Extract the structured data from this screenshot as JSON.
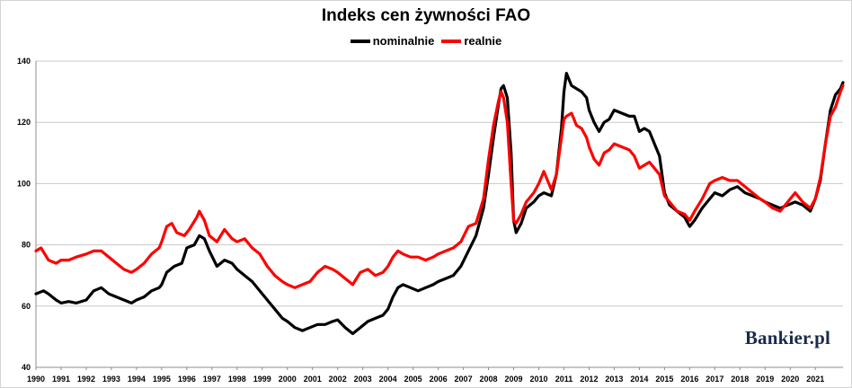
{
  "chart_data": {
    "type": "line",
    "title": "Indeks cen żywności FAO",
    "xlabel": "",
    "ylabel": "",
    "ylim": [
      40,
      140
    ],
    "xlim": [
      1990,
      2022.1
    ],
    "yticks": [
      40,
      60,
      80,
      100,
      120,
      140
    ],
    "xtick_labels": [
      "1990",
      "1991",
      "1992",
      "1993",
      "1994",
      "1995",
      "1996",
      "1997",
      "1998",
      "1999",
      "2000",
      "2001",
      "2002",
      "2003",
      "2004",
      "2005",
      "2006",
      "2007",
      "2008",
      "2009",
      "2010",
      "2011",
      "2012",
      "2013",
      "2014",
      "2015",
      "2016",
      "2017",
      "2018",
      "2019",
      "2020",
      "2021"
    ],
    "grid": "horizontal",
    "legend_position": "top-center",
    "series": [
      {
        "name": "nominalnie",
        "color": "#000000",
        "points": [
          [
            1990,
            64
          ],
          [
            1990.3,
            65
          ],
          [
            1990.5,
            64
          ],
          [
            1990.8,
            62
          ],
          [
            1991,
            61
          ],
          [
            1991.3,
            61.5
          ],
          [
            1991.6,
            61
          ],
          [
            1992,
            62
          ],
          [
            1992.3,
            65
          ],
          [
            1992.6,
            66
          ],
          [
            1992.9,
            64
          ],
          [
            1993.2,
            63
          ],
          [
            1993.5,
            62
          ],
          [
            1993.8,
            61
          ],
          [
            1994,
            62
          ],
          [
            1994.3,
            63
          ],
          [
            1994.6,
            65
          ],
          [
            1994.9,
            66
          ],
          [
            1995,
            67
          ],
          [
            1995.2,
            71
          ],
          [
            1995.5,
            73
          ],
          [
            1995.8,
            74
          ],
          [
            1996,
            79
          ],
          [
            1996.3,
            80
          ],
          [
            1996.5,
            83
          ],
          [
            1996.7,
            82
          ],
          [
            1996.9,
            78
          ],
          [
            1997.2,
            73
          ],
          [
            1997.5,
            75
          ],
          [
            1997.8,
            74
          ],
          [
            1998,
            72
          ],
          [
            1998.3,
            70
          ],
          [
            1998.6,
            68
          ],
          [
            1998.9,
            65
          ],
          [
            1999.2,
            62
          ],
          [
            1999.5,
            59
          ],
          [
            1999.8,
            56
          ],
          [
            2000,
            55
          ],
          [
            2000.3,
            53
          ],
          [
            2000.6,
            52
          ],
          [
            2000.9,
            53
          ],
          [
            2001.2,
            54
          ],
          [
            2001.5,
            54
          ],
          [
            2001.8,
            55
          ],
          [
            2002,
            55.5
          ],
          [
            2002.3,
            53
          ],
          [
            2002.6,
            51
          ],
          [
            2002.9,
            53
          ],
          [
            2003.2,
            55
          ],
          [
            2003.5,
            56
          ],
          [
            2003.8,
            57
          ],
          [
            2004,
            59
          ],
          [
            2004.2,
            63
          ],
          [
            2004.4,
            66
          ],
          [
            2004.6,
            67
          ],
          [
            2004.9,
            66
          ],
          [
            2005.2,
            65
          ],
          [
            2005.5,
            66
          ],
          [
            2005.8,
            67
          ],
          [
            2006,
            68
          ],
          [
            2006.3,
            69
          ],
          [
            2006.6,
            70
          ],
          [
            2006.9,
            73
          ],
          [
            2007.2,
            78
          ],
          [
            2007.5,
            83
          ],
          [
            2007.8,
            92
          ],
          [
            2008,
            103
          ],
          [
            2008.2,
            115
          ],
          [
            2008.4,
            126
          ],
          [
            2008.5,
            131
          ],
          [
            2008.6,
            132
          ],
          [
            2008.75,
            128
          ],
          [
            2008.9,
            110
          ],
          [
            2009,
            88
          ],
          [
            2009.1,
            84
          ],
          [
            2009.3,
            87
          ],
          [
            2009.5,
            92
          ],
          [
            2009.8,
            94
          ],
          [
            2010,
            96
          ],
          [
            2010.2,
            97
          ],
          [
            2010.5,
            96
          ],
          [
            2010.7,
            103
          ],
          [
            2010.9,
            118
          ],
          [
            2011,
            130
          ],
          [
            2011.1,
            136
          ],
          [
            2011.3,
            132
          ],
          [
            2011.5,
            131
          ],
          [
            2011.7,
            130
          ],
          [
            2011.9,
            128
          ],
          [
            2012,
            124
          ],
          [
            2012.2,
            120
          ],
          [
            2012.4,
            117
          ],
          [
            2012.6,
            120
          ],
          [
            2012.8,
            121
          ],
          [
            2013,
            124
          ],
          [
            2013.3,
            123
          ],
          [
            2013.6,
            122
          ],
          [
            2013.8,
            122
          ],
          [
            2014,
            117
          ],
          [
            2014.2,
            118
          ],
          [
            2014.4,
            117
          ],
          [
            2014.6,
            113
          ],
          [
            2014.8,
            109
          ],
          [
            2015,
            97
          ],
          [
            2015.2,
            93
          ],
          [
            2015.5,
            91
          ],
          [
            2015.8,
            89
          ],
          [
            2016,
            86
          ],
          [
            2016.2,
            88
          ],
          [
            2016.5,
            92
          ],
          [
            2016.8,
            95
          ],
          [
            2017,
            97
          ],
          [
            2017.3,
            96
          ],
          [
            2017.6,
            98
          ],
          [
            2017.9,
            99
          ],
          [
            2018.2,
            97
          ],
          [
            2018.5,
            96
          ],
          [
            2018.8,
            95
          ],
          [
            2019,
            94
          ],
          [
            2019.3,
            93
          ],
          [
            2019.6,
            92
          ],
          [
            2019.9,
            93
          ],
          [
            2020.2,
            94
          ],
          [
            2020.5,
            93
          ],
          [
            2020.8,
            91
          ],
          [
            2021,
            95
          ],
          [
            2021.2,
            101
          ],
          [
            2021.4,
            113
          ],
          [
            2021.6,
            124
          ],
          [
            2021.8,
            129
          ],
          [
            2022,
            131
          ],
          [
            2022.1,
            133
          ]
        ]
      },
      {
        "name": "realnie",
        "color": "#ff0000",
        "points": [
          [
            1990,
            78
          ],
          [
            1990.2,
            79
          ],
          [
            1990.5,
            75
          ],
          [
            1990.8,
            74
          ],
          [
            1991,
            75
          ],
          [
            1991.3,
            75
          ],
          [
            1991.6,
            76
          ],
          [
            1992,
            77
          ],
          [
            1992.3,
            78
          ],
          [
            1992.6,
            78
          ],
          [
            1992.9,
            76
          ],
          [
            1993.2,
            74
          ],
          [
            1993.5,
            72
          ],
          [
            1993.8,
            71
          ],
          [
            1994,
            72
          ],
          [
            1994.3,
            74
          ],
          [
            1994.6,
            77
          ],
          [
            1994.9,
            79
          ],
          [
            1995,
            81
          ],
          [
            1995.2,
            86
          ],
          [
            1995.4,
            87
          ],
          [
            1995.6,
            84
          ],
          [
            1995.9,
            83
          ],
          [
            1996.1,
            85
          ],
          [
            1996.4,
            89
          ],
          [
            1996.5,
            91
          ],
          [
            1996.7,
            88
          ],
          [
            1996.9,
            83
          ],
          [
            1997.2,
            81
          ],
          [
            1997.5,
            85
          ],
          [
            1997.8,
            82
          ],
          [
            1998,
            81
          ],
          [
            1998.3,
            82
          ],
          [
            1998.6,
            79
          ],
          [
            1998.9,
            77
          ],
          [
            1999.2,
            73
          ],
          [
            1999.5,
            70
          ],
          [
            1999.8,
            68
          ],
          [
            2000,
            67
          ],
          [
            2000.3,
            66
          ],
          [
            2000.6,
            67
          ],
          [
            2000.9,
            68
          ],
          [
            2001.2,
            71
          ],
          [
            2001.5,
            73
          ],
          [
            2001.8,
            72
          ],
          [
            2002,
            71
          ],
          [
            2002.3,
            69
          ],
          [
            2002.6,
            67
          ],
          [
            2002.9,
            71
          ],
          [
            2003.2,
            72
          ],
          [
            2003.5,
            70
          ],
          [
            2003.8,
            71
          ],
          [
            2004,
            73
          ],
          [
            2004.2,
            76
          ],
          [
            2004.4,
            78
          ],
          [
            2004.6,
            77
          ],
          [
            2004.9,
            76
          ],
          [
            2005.2,
            76
          ],
          [
            2005.5,
            75
          ],
          [
            2005.8,
            76
          ],
          [
            2006,
            77
          ],
          [
            2006.3,
            78
          ],
          [
            2006.6,
            79
          ],
          [
            2006.9,
            81
          ],
          [
            2007.2,
            86
          ],
          [
            2007.5,
            87
          ],
          [
            2007.8,
            95
          ],
          [
            2008,
            108
          ],
          [
            2008.2,
            119
          ],
          [
            2008.4,
            127
          ],
          [
            2008.5,
            130
          ],
          [
            2008.6,
            128
          ],
          [
            2008.75,
            120
          ],
          [
            2008.9,
            100
          ],
          [
            2009,
            88
          ],
          [
            2009.1,
            87
          ],
          [
            2009.3,
            90
          ],
          [
            2009.5,
            94
          ],
          [
            2009.8,
            97
          ],
          [
            2010,
            100
          ],
          [
            2010.2,
            104
          ],
          [
            2010.5,
            98
          ],
          [
            2010.7,
            103
          ],
          [
            2010.9,
            115
          ],
          [
            2011,
            121
          ],
          [
            2011.1,
            122
          ],
          [
            2011.3,
            123
          ],
          [
            2011.5,
            119
          ],
          [
            2011.7,
            118
          ],
          [
            2011.9,
            115
          ],
          [
            2012,
            112
          ],
          [
            2012.2,
            108
          ],
          [
            2012.4,
            106
          ],
          [
            2012.6,
            110
          ],
          [
            2012.8,
            111
          ],
          [
            2013,
            113
          ],
          [
            2013.3,
            112
          ],
          [
            2013.6,
            111
          ],
          [
            2013.8,
            109
          ],
          [
            2014,
            105
          ],
          [
            2014.2,
            106
          ],
          [
            2014.4,
            107
          ],
          [
            2014.6,
            105
          ],
          [
            2014.8,
            103
          ],
          [
            2015,
            96
          ],
          [
            2015.2,
            94
          ],
          [
            2015.5,
            91
          ],
          [
            2015.8,
            90
          ],
          [
            2016,
            88
          ],
          [
            2016.2,
            91
          ],
          [
            2016.5,
            95
          ],
          [
            2016.8,
            100
          ],
          [
            2017,
            101
          ],
          [
            2017.3,
            102
          ],
          [
            2017.6,
            101
          ],
          [
            2017.9,
            101
          ],
          [
            2018.2,
            99
          ],
          [
            2018.5,
            97
          ],
          [
            2018.8,
            95
          ],
          [
            2019,
            94
          ],
          [
            2019.3,
            92
          ],
          [
            2019.6,
            91
          ],
          [
            2019.9,
            94
          ],
          [
            2020.2,
            97
          ],
          [
            2020.5,
            94
          ],
          [
            2020.8,
            92
          ],
          [
            2021,
            95
          ],
          [
            2021.2,
            102
          ],
          [
            2021.4,
            113
          ],
          [
            2021.6,
            122
          ],
          [
            2021.8,
            125
          ],
          [
            2022,
            130
          ],
          [
            2022.1,
            132
          ]
        ]
      }
    ]
  },
  "watermark": "Bankier.pl"
}
